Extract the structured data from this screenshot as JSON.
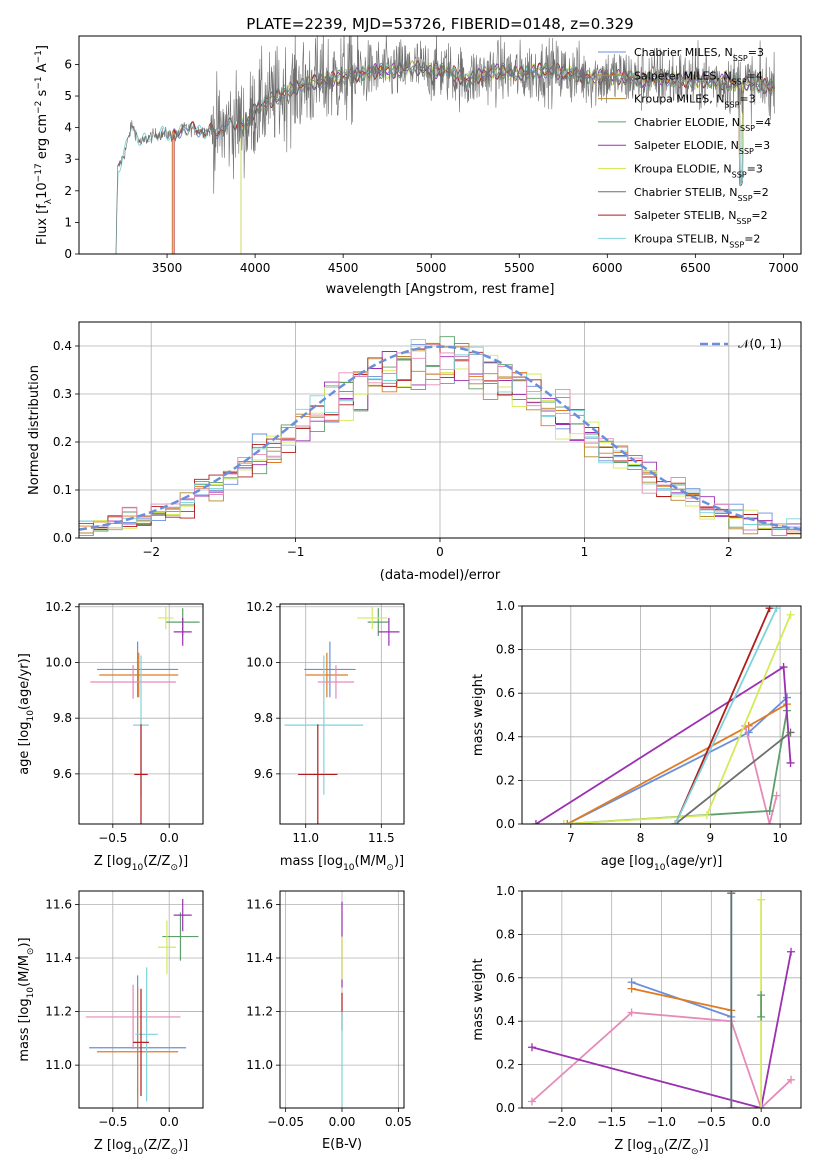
{
  "figure_title": "PLATE=2239, MJD=53726, FIBERID=0148, z=0.329",
  "colors": {
    "Chabrier MILES": "#6a8fdc",
    "Salpeter MILES": "#e07b24",
    "Kroupa MILES": "#b5892c",
    "Chabrier ELODIE": "#5e9e6a",
    "Salpeter ELODIE": "#9b30b0",
    "Kroupa ELODIE": "#d4ea5a",
    "Chabrier STELIB": "#6e6e6e",
    "Salpeter STELIB": "#b01c1c",
    "Kroupa STELIB": "#7fd3d8",
    "pink": "#e68ab8",
    "gaussian": "#6a8fdc"
  },
  "chart_data": [
    {
      "id": "spectrum",
      "type": "line",
      "title": "PLATE=2239, MJD=53726, FIBERID=0148, z=0.329",
      "xlabel": "wavelength [Angstrom, rest frame]",
      "ylabel_parts": {
        "a": "Flux [f",
        "sub": "λ",
        "b": "10",
        "sup1": "−17",
        "c": " erg cm",
        "sup2": "−2",
        "d": " s",
        "sup3": "−1",
        "e": " A",
        "sup4": "−1",
        "f": "]"
      },
      "xlim": [
        3000,
        7100
      ],
      "ylim": [
        0,
        6.9
      ],
      "xticks": [
        3500,
        4000,
        4500,
        5000,
        5500,
        6000,
        6500,
        7000
      ],
      "yticks": [
        0,
        1,
        2,
        3,
        4,
        5,
        6
      ],
      "legend_position": "upper-right",
      "continuum_points": [
        [
          3210,
          0
        ],
        [
          3220,
          2.7
        ],
        [
          3260,
          3.2
        ],
        [
          3300,
          4.1
        ],
        [
          3350,
          3.5
        ],
        [
          3400,
          3.7
        ],
        [
          3450,
          3.8
        ],
        [
          3500,
          3.8
        ],
        [
          3550,
          3.7
        ],
        [
          3600,
          4.0
        ],
        [
          3700,
          3.9
        ],
        [
          3800,
          3.9
        ],
        [
          3900,
          4.2
        ],
        [
          3950,
          4.0
        ],
        [
          4000,
          4.6
        ],
        [
          4100,
          4.9
        ],
        [
          4200,
          5.2
        ],
        [
          4300,
          5.4
        ],
        [
          4400,
          5.5
        ],
        [
          4500,
          5.6
        ],
        [
          4600,
          5.7
        ],
        [
          4700,
          5.8
        ],
        [
          4800,
          5.8
        ],
        [
          4900,
          5.9
        ],
        [
          5000,
          5.8
        ],
        [
          5100,
          5.8
        ],
        [
          5200,
          5.5
        ],
        [
          5300,
          5.7
        ],
        [
          5400,
          5.8
        ],
        [
          5500,
          5.7
        ],
        [
          5600,
          5.8
        ],
        [
          5700,
          5.8
        ],
        [
          5800,
          5.7
        ],
        [
          5900,
          5.6
        ],
        [
          6000,
          5.6
        ],
        [
          6100,
          5.6
        ],
        [
          6200,
          5.5
        ],
        [
          6300,
          5.6
        ],
        [
          6400,
          5.5
        ],
        [
          6500,
          5.5
        ],
        [
          6600,
          5.5
        ],
        [
          6700,
          5.4
        ],
        [
          6800,
          5.4
        ],
        [
          6900,
          5.3
        ]
      ],
      "series": [
        {
          "name": "Chabrier MILES",
          "nssp": "3",
          "start": 3530
        },
        {
          "name": "Salpeter MILES",
          "nssp": "4",
          "start": 3530
        },
        {
          "name": "Kroupa MILES",
          "nssp": "3",
          "start": 3920
        },
        {
          "name": "Chabrier ELODIE",
          "nssp": "4",
          "start": 3920
        },
        {
          "name": "Salpeter ELODIE",
          "nssp": "3",
          "start": 3920
        },
        {
          "name": "Kroupa ELODIE",
          "nssp": "3",
          "start": 3920
        },
        {
          "name": "Chabrier STELIB",
          "nssp": "2",
          "start": 3210
        },
        {
          "name": "Salpeter STELIB",
          "nssp": "2",
          "start": 3540
        },
        {
          "name": "Kroupa STELIB",
          "nssp": "2",
          "start": 3210
        }
      ]
    },
    {
      "id": "residuals",
      "type": "histogram",
      "xlabel": "(data-model)/error",
      "ylabel": "Normed distribution",
      "xlim": [
        -2.5,
        2.5
      ],
      "ylim": [
        0,
        0.45
      ],
      "xticks": [
        -2,
        -1,
        0,
        1,
        2
      ],
      "yticks": [
        0.0,
        0.1,
        0.2,
        0.3,
        0.4
      ],
      "grid": true,
      "legend": {
        "label": "𝒩(0, 1)",
        "position": "upper-right"
      },
      "bin_width": 0.1,
      "bin_start": -2.5
    },
    {
      "id": "age-vs-Z",
      "type": "errorbar",
      "xlabel_parts": {
        "a": "Z [log",
        "sub": "10",
        "b": "(Z/Z",
        "sub2": "⊙",
        "c": ")]"
      },
      "ylabel_parts": {
        "a": "age  [log",
        "sub": "10",
        "b": "(age/yr)]"
      },
      "xlim": [
        -0.8,
        0.3
      ],
      "ylim": [
        9.42,
        10.21
      ],
      "xticks": [
        -0.5,
        0.0
      ],
      "yticks": [
        9.6,
        9.8,
        10.0,
        10.2
      ],
      "grid": true,
      "points": [
        {
          "c": "Chabrier MILES",
          "x": -0.28,
          "xe": 0.36,
          "y": 9.975,
          "ye": 0.1
        },
        {
          "c": "Salpeter MILES",
          "x": -0.27,
          "xe": 0.35,
          "y": 9.955,
          "ye": 0.08
        },
        {
          "c": "pink",
          "x": -0.32,
          "xe": 0.38,
          "y": 9.93,
          "ye": 0.06
        },
        {
          "c": "Chabrier ELODIE",
          "x": 0.12,
          "xe": 0.15,
          "y": 10.145,
          "ye": 0.05
        },
        {
          "c": "Salpeter ELODIE",
          "x": 0.12,
          "xe": 0.08,
          "y": 10.11,
          "ye": 0.05
        },
        {
          "c": "Kroupa ELODIE",
          "x": -0.03,
          "xe": 0.07,
          "y": 10.16,
          "ye": 0.04
        },
        {
          "c": "Kroupa STELIB",
          "x": -0.25,
          "xe": 0.07,
          "y": 9.775,
          "ye": 0.25
        },
        {
          "c": "Salpeter STELIB",
          "x": -0.25,
          "xe": 0.06,
          "y": 9.598,
          "ye": 0.18
        }
      ]
    },
    {
      "id": "age-vs-mass",
      "type": "errorbar",
      "xlabel_parts": {
        "a": "mass [log",
        "sub": "10",
        "b": "(M/M",
        "sub2": "⊙",
        "c": ")]"
      },
      "xlim": [
        10.83,
        11.65
      ],
      "ylim": [
        9.42,
        10.21
      ],
      "xticks": [
        11.0,
        11.5
      ],
      "yticks": [
        9.6,
        9.8,
        10.0,
        10.2
      ],
      "grid": true,
      "points": [
        {
          "c": "Chabrier MILES",
          "x": 11.16,
          "xe": 0.17,
          "y": 9.975,
          "ye": 0.1
        },
        {
          "c": "Salpeter MILES",
          "x": 11.14,
          "xe": 0.14,
          "y": 9.955,
          "ye": 0.08
        },
        {
          "c": "pink",
          "x": 11.2,
          "xe": 0.12,
          "y": 9.93,
          "ye": 0.06
        },
        {
          "c": "Chabrier ELODIE",
          "x": 11.48,
          "xe": 0.07,
          "y": 10.145,
          "ye": 0.05
        },
        {
          "c": "Salpeter ELODIE",
          "x": 11.55,
          "xe": 0.07,
          "y": 10.11,
          "ye": 0.05
        },
        {
          "c": "Kroupa ELODIE",
          "x": 11.44,
          "xe": 0.1,
          "y": 10.16,
          "ye": 0.04
        },
        {
          "c": "Kroupa STELIB",
          "x": 11.12,
          "xe": 0.26,
          "y": 9.775,
          "ye": 0.25
        },
        {
          "c": "Salpeter STELIB",
          "x": 11.08,
          "xe": 0.13,
          "y": 9.598,
          "ye": 0.18
        }
      ]
    },
    {
      "id": "mass-weight-vs-age",
      "type": "line",
      "xlabel_parts": {
        "a": "age  [log",
        "sub": "10",
        "b": "(age/yr)]"
      },
      "ylabel": "mass weight",
      "xlim": [
        6.3,
        10.3
      ],
      "ylim": [
        0,
        1.0
      ],
      "xticks": [
        7,
        8,
        9,
        10
      ],
      "yticks": [
        0.0,
        0.2,
        0.4,
        0.6,
        0.8,
        1.0
      ],
      "grid": true,
      "series": [
        {
          "c": "Chabrier MILES",
          "x": [
            6.95,
            9.55,
            10.1
          ],
          "y": [
            0.0,
            0.42,
            0.58
          ]
        },
        {
          "c": "Salpeter MILES",
          "x": [
            6.95,
            9.55,
            10.1
          ],
          "y": [
            0.0,
            0.45,
            0.55
          ]
        },
        {
          "c": "pink",
          "x": [
            9.5,
            9.85,
            9.95
          ],
          "y": [
            0.45,
            0.0,
            0.13
          ]
        },
        {
          "c": "Chabrier ELODIE",
          "x": [
            6.9,
            9.85,
            10.1
          ],
          "y": [
            0.0,
            0.06,
            0.52
          ]
        },
        {
          "c": "Salpeter ELODIE",
          "x": [
            6.5,
            10.05,
            10.15
          ],
          "y": [
            0.0,
            0.72,
            0.28
          ]
        },
        {
          "c": "Kroupa ELODIE",
          "x": [
            6.9,
            8.95,
            10.15
          ],
          "y": [
            0.0,
            0.04,
            0.96
          ]
        },
        {
          "c": "Chabrier STELIB",
          "x": [
            8.5,
            10.15
          ],
          "y": [
            0.0,
            0.42
          ]
        },
        {
          "c": "Salpeter STELIB",
          "x": [
            8.5,
            9.85
          ],
          "y": [
            0.0,
            0.99
          ]
        },
        {
          "c": "Kroupa STELIB",
          "x": [
            8.5,
            9.95
          ],
          "y": [
            0.0,
            0.99
          ]
        }
      ]
    },
    {
      "id": "mass-vs-Z",
      "type": "errorbar",
      "xlabel_parts": {
        "a": "Z [log",
        "sub": "10",
        "b": "(Z/Z",
        "sub2": "⊙",
        "c": ")]"
      },
      "ylabel_parts": {
        "a": "mass [log",
        "sub": "10",
        "b": "(M/M",
        "sub2": "⊙",
        "c": ")]"
      },
      "xlim": [
        -0.8,
        0.3
      ],
      "ylim": [
        10.84,
        11.65
      ],
      "xticks": [
        -0.5,
        0.0
      ],
      "yticks": [
        11.0,
        11.2,
        11.4,
        11.6
      ],
      "grid": true,
      "points": [
        {
          "c": "Chabrier MILES",
          "x": -0.28,
          "xe": 0.43,
          "y": 11.065,
          "ye": 0.27
        },
        {
          "c": "Salpeter MILES",
          "x": -0.28,
          "xe": 0.36,
          "y": 11.05,
          "ye": 0.24
        },
        {
          "c": "pink",
          "x": -0.32,
          "xe": 0.42,
          "y": 11.18,
          "ye": 0.12
        },
        {
          "c": "Chabrier ELODIE",
          "x": 0.1,
          "xe": 0.16,
          "y": 11.48,
          "ye": 0.09
        },
        {
          "c": "Salpeter ELODIE",
          "x": 0.12,
          "xe": 0.08,
          "y": 11.56,
          "ye": 0.06
        },
        {
          "c": "Kroupa ELODIE",
          "x": -0.02,
          "xe": 0.08,
          "y": 11.44,
          "ye": 0.1
        },
        {
          "c": "Kroupa STELIB",
          "x": -0.2,
          "xe": 0.1,
          "y": 11.115,
          "ye": 0.25
        },
        {
          "c": "Salpeter STELIB",
          "x": -0.25,
          "xe": 0.07,
          "y": 11.085,
          "ye": 0.2
        }
      ]
    },
    {
      "id": "mass-vs-ebv",
      "type": "errorbar",
      "xlabel": "E(B-V)",
      "xlim": [
        -0.055,
        0.055
      ],
      "ylim": [
        10.84,
        11.65
      ],
      "xticks": [
        -0.05,
        0.0,
        0.05
      ],
      "yticks": [
        11.0,
        11.2,
        11.4,
        11.6
      ],
      "grid": true,
      "points": [
        {
          "c": "Salpeter ELODIE",
          "x": 0.0,
          "xe": 0.0,
          "y": 11.45,
          "ye": 0.16
        },
        {
          "c": "Kroupa ELODIE",
          "x": 0.0,
          "xe": 0.0,
          "y": 11.4,
          "ye": 0.08
        },
        {
          "c": "Salpeter STELIB",
          "x": 0.0,
          "xe": 0.0,
          "y": 11.2,
          "ye": 0.07
        },
        {
          "c": "Kroupa STELIB",
          "x": 0.0,
          "xe": 0.0,
          "y": 11.0,
          "ye": 0.2
        }
      ]
    },
    {
      "id": "mass-weight-vs-Z",
      "type": "line",
      "xlabel_parts": {
        "a": "Z [log",
        "sub": "10",
        "b": "(Z/Z",
        "sub2": "⊙",
        "c": ")]"
      },
      "ylabel": "mass weight",
      "xlim": [
        -2.4,
        0.4
      ],
      "ylim": [
        0,
        1.0
      ],
      "xticks": [
        -2.0,
        -1.5,
        -1.0,
        -0.5,
        0.0
      ],
      "yticks": [
        0.0,
        0.2,
        0.4,
        0.6,
        0.8,
        1.0
      ],
      "grid": true,
      "series": [
        {
          "c": "Chabrier MILES",
          "x": [
            -1.3,
            -0.3
          ],
          "y": [
            0.58,
            0.42
          ]
        },
        {
          "c": "Salpeter MILES",
          "x": [
            -1.3,
            -0.3
          ],
          "y": [
            0.55,
            0.45
          ]
        },
        {
          "c": "pink",
          "x": [
            -2.3,
            -1.3,
            -0.3,
            0.0,
            0.3
          ],
          "y": [
            0.03,
            0.44,
            0.4,
            0.0,
            0.13
          ]
        },
        {
          "c": "Salpeter ELODIE",
          "x": [
            -2.3,
            0.0,
            0.3
          ],
          "y": [
            0.28,
            0.0,
            0.72
          ]
        },
        {
          "c": "Kroupa ELODIE",
          "x": [
            0.0,
            0.0
          ],
          "y": [
            0.0,
            0.96
          ]
        },
        {
          "c": "Chabrier ELODIE",
          "x": [
            0.0,
            0.0
          ],
          "y": [
            0.42,
            0.52
          ]
        },
        {
          "c": "Kroupa STELIB",
          "x": [
            -0.3,
            -0.3
          ],
          "y": [
            0.0,
            0.99
          ]
        },
        {
          "c": "Chabrier STELIB",
          "x": [
            -0.3,
            -0.3
          ],
          "y": [
            0.0,
            0.99
          ]
        }
      ]
    }
  ]
}
